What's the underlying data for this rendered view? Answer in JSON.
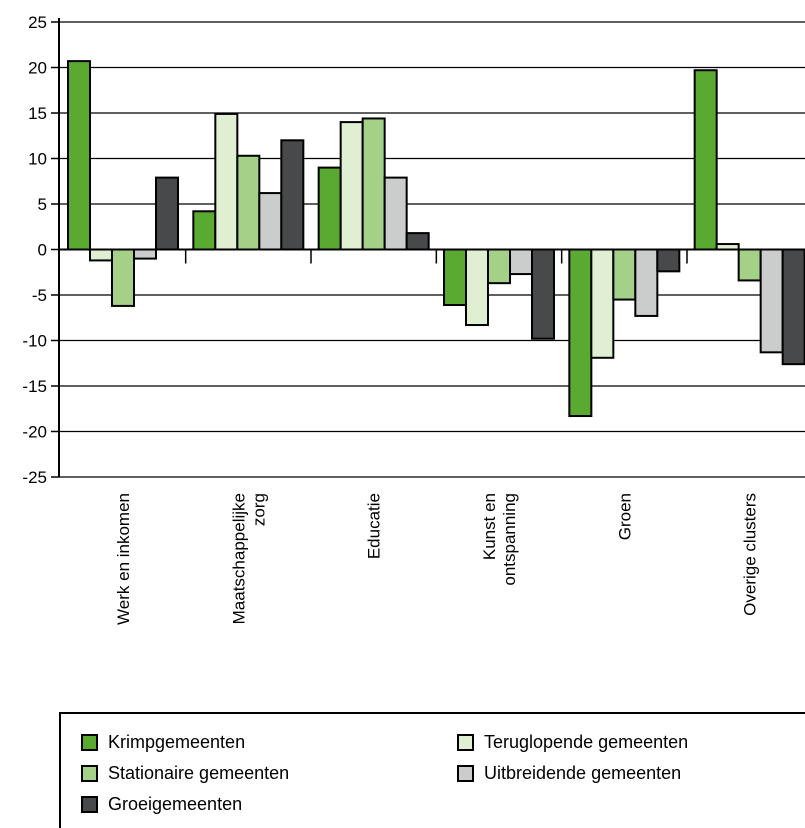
{
  "chart_data": {
    "type": "bar",
    "title": "",
    "xlabel": "",
    "ylabel": "",
    "ylim": [
      -25,
      25
    ],
    "yticks": [
      25,
      20,
      15,
      10,
      5,
      0,
      -5,
      -10,
      -15,
      -20,
      -25
    ],
    "grid": true,
    "legend_position": "bottom",
    "categories": [
      [
        "Werk en inkomen"
      ],
      [
        "Maatschappelijke",
        "zorg"
      ],
      [
        "Educatie"
      ],
      [
        "Kunst en",
        "ontspanning"
      ],
      [
        "Groen"
      ],
      [
        "Overige clusters"
      ]
    ],
    "series": [
      {
        "name": "Krimpgemeenten",
        "color": "#5aaa32",
        "values": [
          20.7,
          4.2,
          9.0,
          -6.1,
          -18.3,
          19.7
        ]
      },
      {
        "name": "Teruglopende gemeenten",
        "color": "#e0efd2",
        "values": [
          -1.2,
          14.9,
          14.0,
          -8.3,
          -11.9,
          0.6
        ]
      },
      {
        "name": "Stationaire gemeenten",
        "color": "#a5d087",
        "values": [
          -6.2,
          10.3,
          14.4,
          -3.7,
          -5.5,
          -3.4
        ]
      },
      {
        "name": "Uitbreidende gemeenten",
        "color": "#cbcccc",
        "values": [
          -1.0,
          6.2,
          7.9,
          -2.7,
          -7.3,
          -11.3
        ]
      },
      {
        "name": "Groeigemeenten",
        "color": "#48494b",
        "values": [
          7.9,
          12.0,
          1.8,
          -9.8,
          -2.4,
          -12.6
        ]
      }
    ]
  },
  "legend": {
    "items": [
      {
        "label": "Krimpgemeenten",
        "color": "#5aaa32"
      },
      {
        "label": "Teruglopende gemeenten",
        "color": "#e0efd2"
      },
      {
        "label": "Stationaire gemeenten",
        "color": "#a5d087"
      },
      {
        "label": "Uitbreidende gemeenten",
        "color": "#cbcccc"
      },
      {
        "label": "Groeigemeenten",
        "color": "#48494b"
      }
    ]
  }
}
